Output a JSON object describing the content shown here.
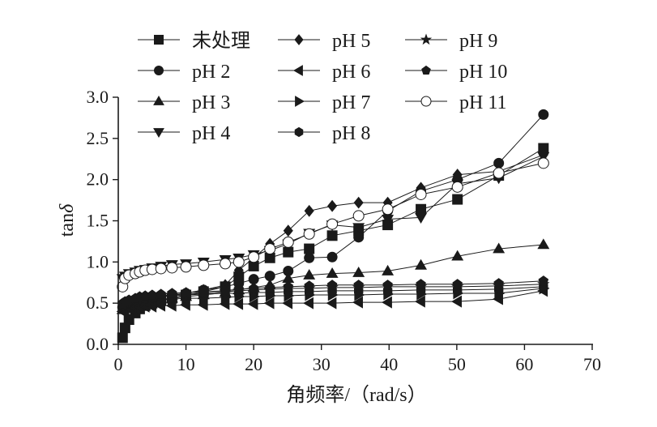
{
  "chart_data": {
    "type": "line",
    "title": "",
    "xlabel": "角频率/（rad/s）",
    "ylabel": "tanδ",
    "xlim": [
      0,
      70
    ],
    "ylim": [
      0,
      3.0
    ],
    "xticks": [
      0,
      10,
      20,
      30,
      40,
      50,
      60,
      70
    ],
    "xtick_labels": [
      "0",
      "10",
      "20",
      "30",
      "40",
      "50",
      "60",
      "70"
    ],
    "yticks": [
      0,
      0.5,
      1.0,
      1.5,
      2.0,
      2.5,
      3.0
    ],
    "ytick_labels": [
      "0.0",
      "0.5",
      "1.0",
      "1.5",
      "2.0",
      "2.5",
      "3.0"
    ],
    "grid": false,
    "legend_position": "top",
    "x": [
      0.63,
      1.0,
      1.58,
      2.51,
      3.16,
      3.98,
      5.01,
      6.31,
      7.94,
      10.0,
      12.6,
      15.8,
      17.8,
      20.0,
      22.4,
      25.1,
      28.2,
      31.6,
      35.5,
      39.8,
      44.7,
      50.1,
      56.2,
      62.8
    ],
    "series": [
      {
        "name": "未处理",
        "marker": "square",
        "values": [
          0.08,
          0.2,
          0.3,
          0.38,
          0.43,
          0.47,
          0.5,
          0.53,
          0.56,
          0.6,
          0.64,
          0.7,
          0.82,
          0.95,
          1.05,
          1.12,
          1.16,
          1.32,
          1.38,
          1.45,
          1.64,
          1.76,
          2.05,
          2.38
        ]
      },
      {
        "name": "pH 2",
        "marker": "circle",
        "values": [
          0.45,
          0.48,
          0.5,
          0.52,
          0.54,
          0.55,
          0.57,
          0.58,
          0.6,
          0.62,
          0.66,
          0.7,
          0.74,
          0.79,
          0.83,
          0.89,
          1.05,
          1.06,
          1.3,
          1.62,
          1.86,
          2.0,
          2.2,
          2.79
        ]
      },
      {
        "name": "pH 3",
        "marker": "triangle-up",
        "values": [
          0.42,
          0.45,
          0.47,
          0.49,
          0.51,
          0.52,
          0.54,
          0.55,
          0.56,
          0.58,
          0.6,
          0.63,
          0.66,
          0.69,
          0.72,
          0.8,
          0.84,
          0.86,
          0.87,
          0.89,
          0.96,
          1.07,
          1.16,
          1.21
        ]
      },
      {
        "name": "pH 4",
        "marker": "triangle-down",
        "values": [
          0.8,
          0.83,
          0.86,
          0.88,
          0.9,
          0.91,
          0.93,
          0.95,
          0.97,
          0.98,
          1.0,
          1.03,
          1.05,
          1.09,
          1.14,
          1.22,
          1.35,
          1.45,
          1.42,
          1.52,
          1.54,
          1.95,
          2.02,
          2.28
        ]
      },
      {
        "name": "pH 5",
        "marker": "diamond",
        "values": [
          0.45,
          0.48,
          0.5,
          0.52,
          0.54,
          0.55,
          0.57,
          0.58,
          0.6,
          0.62,
          0.66,
          0.72,
          0.9,
          1.05,
          1.22,
          1.38,
          1.62,
          1.68,
          1.72,
          1.72,
          1.9,
          2.06,
          2.1,
          2.3
        ]
      },
      {
        "name": "pH 6",
        "marker": "triangle-left",
        "values": [
          0.4,
          0.42,
          0.43,
          0.44,
          0.45,
          0.46,
          0.46,
          0.47,
          0.47,
          0.48,
          0.48,
          0.49,
          0.49,
          0.49,
          0.5,
          0.5,
          0.5,
          0.5,
          0.51,
          0.51,
          0.52,
          0.52,
          0.55,
          0.65
        ]
      },
      {
        "name": "pH 7",
        "marker": "triangle-right",
        "values": [
          0.45,
          0.47,
          0.48,
          0.5,
          0.51,
          0.52,
          0.53,
          0.54,
          0.55,
          0.56,
          0.56,
          0.57,
          0.58,
          0.58,
          0.59,
          0.59,
          0.6,
          0.6,
          0.6,
          0.61,
          0.61,
          0.62,
          0.62,
          0.68
        ]
      },
      {
        "name": "pH 8",
        "marker": "hexagon",
        "values": [
          0.47,
          0.49,
          0.51,
          0.53,
          0.55,
          0.56,
          0.57,
          0.58,
          0.59,
          0.6,
          0.61,
          0.62,
          0.62,
          0.63,
          0.63,
          0.64,
          0.64,
          0.65,
          0.65,
          0.65,
          0.66,
          0.66,
          0.67,
          0.7
        ]
      },
      {
        "name": "pH 9",
        "marker": "star",
        "values": [
          0.48,
          0.5,
          0.52,
          0.54,
          0.56,
          0.57,
          0.58,
          0.59,
          0.6,
          0.61,
          0.62,
          0.64,
          0.65,
          0.66,
          0.67,
          0.68,
          0.68,
          0.69,
          0.69,
          0.7,
          0.7,
          0.7,
          0.71,
          0.73
        ]
      },
      {
        "name": "pH 10",
        "marker": "pentagon",
        "values": [
          0.5,
          0.52,
          0.54,
          0.56,
          0.58,
          0.59,
          0.6,
          0.61,
          0.62,
          0.63,
          0.64,
          0.65,
          0.67,
          0.68,
          0.69,
          0.7,
          0.71,
          0.72,
          0.72,
          0.72,
          0.73,
          0.73,
          0.74,
          0.77
        ]
      },
      {
        "name": "pH 11",
        "marker": "open-circle",
        "values": [
          0.7,
          0.8,
          0.84,
          0.86,
          0.88,
          0.9,
          0.91,
          0.92,
          0.93,
          0.94,
          0.96,
          0.98,
          1.0,
          1.06,
          1.16,
          1.24,
          1.34,
          1.46,
          1.56,
          1.64,
          1.82,
          1.91,
          2.08,
          2.2
        ]
      }
    ]
  }
}
